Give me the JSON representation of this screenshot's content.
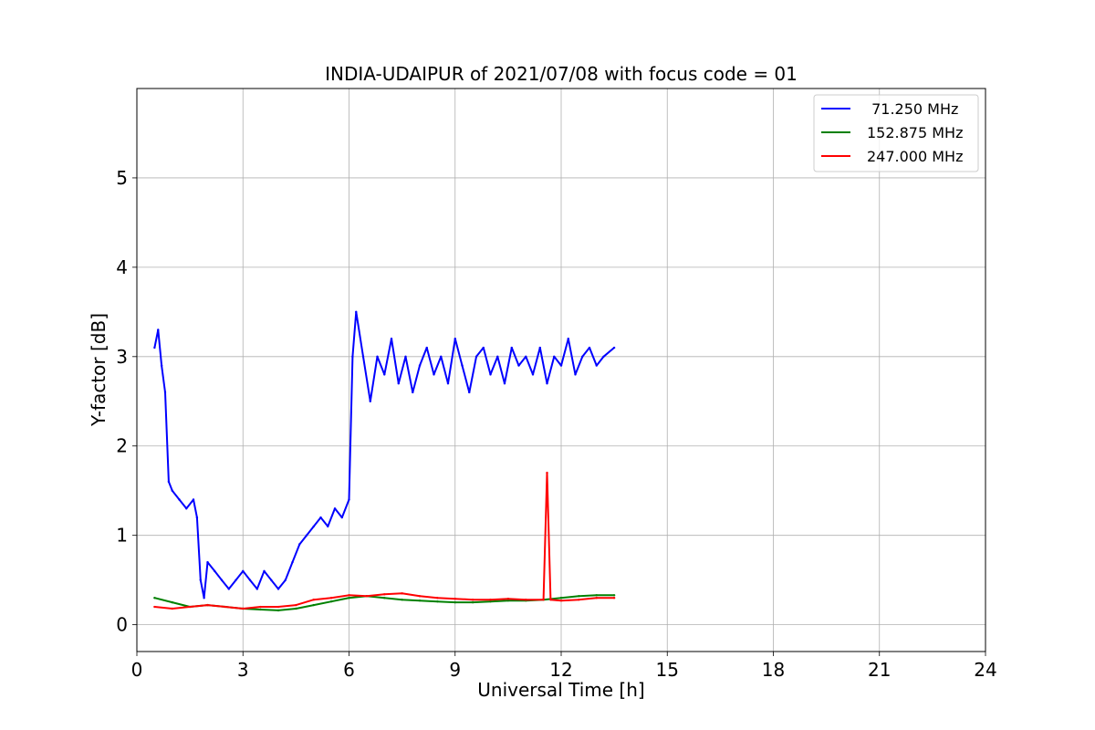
{
  "chart_data": {
    "type": "line",
    "title": "INDIA-UDAIPUR of 2021/07/08 with focus code = 01",
    "xlabel": "Universal Time [h]",
    "ylabel": "Y-factor [dB]",
    "xlim": [
      0,
      24
    ],
    "ylim": [
      -0.3,
      6.0
    ],
    "xticks": [
      0,
      3,
      6,
      9,
      12,
      15,
      18,
      21,
      24
    ],
    "yticks": [
      0,
      1,
      2,
      3,
      4,
      5
    ],
    "grid": true,
    "legend_position": "top-right",
    "series": [
      {
        "name": " 71.250 MHz",
        "color": "#0000ff",
        "x": [
          0.5,
          0.6,
          0.7,
          0.8,
          0.9,
          1.0,
          1.2,
          1.4,
          1.6,
          1.7,
          1.8,
          1.9,
          2.0,
          2.2,
          2.4,
          2.6,
          2.8,
          3.0,
          3.2,
          3.4,
          3.6,
          3.8,
          4.0,
          4.2,
          4.4,
          4.6,
          4.8,
          5.0,
          5.2,
          5.4,
          5.6,
          5.8,
          6.0,
          6.1,
          6.2,
          6.4,
          6.6,
          6.8,
          7.0,
          7.2,
          7.4,
          7.6,
          7.8,
          8.0,
          8.2,
          8.4,
          8.6,
          8.8,
          9.0,
          9.2,
          9.4,
          9.6,
          9.8,
          10.0,
          10.2,
          10.4,
          10.6,
          10.8,
          11.0,
          11.2,
          11.4,
          11.6,
          11.8,
          12.0,
          12.2,
          12.4,
          12.6,
          12.8,
          13.0,
          13.2,
          13.5
        ],
        "y": [
          3.1,
          3.3,
          2.9,
          2.6,
          1.6,
          1.5,
          1.4,
          1.3,
          1.4,
          1.2,
          0.5,
          0.3,
          0.7,
          0.6,
          0.5,
          0.4,
          0.5,
          0.6,
          0.5,
          0.4,
          0.6,
          0.5,
          0.4,
          0.5,
          0.7,
          0.9,
          1.0,
          1.1,
          1.2,
          1.1,
          1.3,
          1.2,
          1.4,
          3.0,
          3.5,
          3.0,
          2.5,
          3.0,
          2.8,
          3.2,
          2.7,
          3.0,
          2.6,
          2.9,
          3.1,
          2.8,
          3.0,
          2.7,
          3.2,
          2.9,
          2.6,
          3.0,
          3.1,
          2.8,
          3.0,
          2.7,
          3.1,
          2.9,
          3.0,
          2.8,
          3.1,
          2.7,
          3.0,
          2.9,
          3.2,
          2.8,
          3.0,
          3.1,
          2.9,
          3.0,
          3.1
        ]
      },
      {
        "name": "152.875 MHz",
        "color": "#008000",
        "x": [
          0.5,
          1.0,
          1.5,
          2.0,
          2.5,
          3.0,
          3.5,
          4.0,
          4.5,
          5.0,
          5.5,
          6.0,
          6.5,
          7.0,
          7.5,
          8.0,
          8.5,
          9.0,
          9.5,
          10.0,
          10.5,
          11.0,
          11.5,
          12.0,
          12.5,
          13.0,
          13.5
        ],
        "y": [
          0.3,
          0.25,
          0.2,
          0.22,
          0.2,
          0.18,
          0.17,
          0.16,
          0.18,
          0.22,
          0.26,
          0.3,
          0.32,
          0.3,
          0.28,
          0.27,
          0.26,
          0.25,
          0.25,
          0.26,
          0.27,
          0.27,
          0.28,
          0.3,
          0.32,
          0.33,
          0.33
        ]
      },
      {
        "name": "247.000 MHz",
        "color": "#ff0000",
        "x": [
          0.5,
          1.0,
          1.5,
          2.0,
          2.5,
          3.0,
          3.5,
          4.0,
          4.5,
          5.0,
          5.5,
          6.0,
          6.5,
          7.0,
          7.5,
          8.0,
          8.5,
          9.0,
          9.5,
          10.0,
          10.5,
          11.0,
          11.5,
          11.6,
          11.7,
          12.0,
          12.5,
          13.0,
          13.5
        ],
        "y": [
          0.2,
          0.18,
          0.2,
          0.22,
          0.2,
          0.18,
          0.2,
          0.2,
          0.22,
          0.28,
          0.3,
          0.33,
          0.32,
          0.34,
          0.35,
          0.32,
          0.3,
          0.29,
          0.28,
          0.28,
          0.29,
          0.28,
          0.28,
          1.7,
          0.28,
          0.27,
          0.28,
          0.3,
          0.3
        ]
      }
    ]
  }
}
